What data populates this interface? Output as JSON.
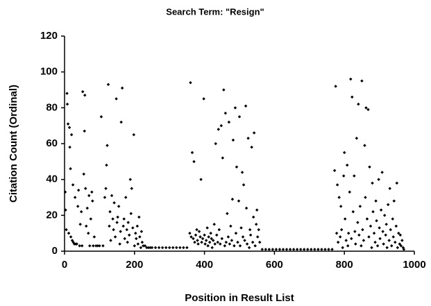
{
  "chart_data": {
    "type": "scatter",
    "title": "Search Term: \"Resign\"",
    "x_label": "Position in Result List",
    "y_label": "Citation Count (Ordinal)",
    "color": "#000000",
    "xlim": [
      0,
      1000
    ],
    "xticks": [
      0,
      200,
      400,
      600,
      800,
      1000
    ],
    "ylim": [
      0,
      120
    ],
    "yticks": [
      0,
      20,
      40,
      60,
      80,
      100,
      120
    ],
    "grid": false,
    "x": [
      2,
      3,
      5,
      7,
      8,
      10,
      12,
      14,
      15,
      17,
      18,
      20,
      22,
      24,
      25,
      28,
      30,
      32,
      35,
      38,
      40,
      43,
      45,
      48,
      50,
      52,
      55,
      57,
      58,
      60,
      62,
      65,
      68,
      70,
      72,
      75,
      78,
      80,
      82,
      85,
      90,
      95,
      100,
      105,
      110,
      115,
      118,
      120,
      122,
      125,
      128,
      130,
      132,
      135,
      138,
      140,
      142,
      145,
      148,
      150,
      152,
      155,
      158,
      160,
      162,
      165,
      168,
      170,
      172,
      175,
      178,
      180,
      182,
      185,
      188,
      190,
      192,
      195,
      198,
      200,
      203,
      205,
      208,
      210,
      213,
      215,
      218,
      220,
      222,
      225,
      230,
      235,
      240,
      245,
      250,
      260,
      270,
      280,
      290,
      300,
      310,
      320,
      330,
      340,
      350,
      358,
      360,
      362,
      365,
      368,
      370,
      372,
      375,
      378,
      380,
      382,
      385,
      388,
      390,
      392,
      395,
      398,
      400,
      402,
      405,
      408,
      410,
      412,
      415,
      418,
      420,
      422,
      425,
      428,
      430,
      432,
      435,
      438,
      440,
      442,
      445,
      448,
      450,
      452,
      455,
      458,
      460,
      462,
      465,
      468,
      470,
      472,
      475,
      478,
      480,
      482,
      485,
      488,
      490,
      492,
      495,
      498,
      500,
      502,
      505,
      508,
      510,
      512,
      515,
      518,
      520,
      522,
      525,
      528,
      530,
      532,
      535,
      538,
      540,
      542,
      545,
      548,
      550,
      552,
      555,
      558,
      565,
      575,
      585,
      595,
      605,
      615,
      625,
      635,
      645,
      655,
      665,
      675,
      685,
      695,
      705,
      715,
      725,
      735,
      745,
      755,
      765,
      772,
      775,
      778,
      780,
      782,
      785,
      788,
      790,
      792,
      795,
      798,
      800,
      802,
      805,
      808,
      810,
      812,
      815,
      818,
      820,
      822,
      825,
      828,
      830,
      832,
      835,
      838,
      840,
      842,
      845,
      848,
      850,
      852,
      855,
      858,
      860,
      862,
      865,
      868,
      870,
      872,
      875,
      878,
      880,
      882,
      885,
      888,
      890,
      892,
      895,
      898,
      900,
      902,
      905,
      908,
      910,
      912,
      915,
      918,
      920,
      922,
      925,
      928,
      930,
      932,
      935,
      938,
      940,
      942,
      945,
      948,
      950,
      952,
      955,
      958,
      960,
      962,
      965,
      968,
      970
    ],
    "values": [
      33,
      23,
      12,
      88,
      82,
      71,
      10,
      69,
      58,
      46,
      8,
      65,
      6,
      37,
      5,
      4,
      30,
      4,
      4,
      25,
      34,
      3,
      15,
      22,
      3,
      89,
      43,
      67,
      87,
      35,
      14,
      24,
      10,
      31,
      3,
      18,
      33,
      28,
      3,
      8,
      3,
      3,
      3,
      75,
      3,
      30,
      35,
      48,
      59,
      93,
      14,
      22,
      6,
      31,
      18,
      12,
      27,
      8,
      85,
      16,
      19,
      25,
      4,
      11,
      72,
      91,
      14,
      18,
      7,
      30,
      12,
      5,
      16,
      9,
      40,
      21,
      35,
      13,
      65,
      3,
      10,
      7,
      14,
      4,
      19,
      8,
      2,
      11,
      5,
      3,
      3,
      2,
      2,
      2,
      2,
      2,
      2,
      2,
      2,
      2,
      2,
      2,
      2,
      2,
      2,
      10,
      94,
      8,
      55,
      7,
      50,
      5,
      9,
      12,
      6,
      4,
      11,
      8,
      40,
      5,
      7,
      85,
      9,
      4,
      6,
      13,
      3,
      8,
      5,
      10,
      7,
      2,
      6,
      15,
      4,
      60,
      9,
      5,
      68,
      12,
      4,
      70,
      7,
      52,
      90,
      3,
      77,
      5,
      21,
      8,
      72,
      4,
      14,
      6,
      29,
      62,
      3,
      80,
      10,
      47,
      5,
      28,
      75,
      3,
      13,
      44,
      8,
      37,
      6,
      81,
      24,
      4,
      63,
      2,
      12,
      9,
      58,
      5,
      19,
      66,
      3,
      15,
      23,
      8,
      12,
      5,
      1,
      1,
      1,
      1,
      1,
      1,
      1,
      1,
      1,
      1,
      1,
      1,
      1,
      1,
      1,
      1,
      1,
      1,
      1,
      1,
      1,
      45,
      92,
      10,
      37,
      5,
      30,
      8,
      25,
      12,
      2,
      42,
      55,
      18,
      6,
      48,
      3,
      10,
      33,
      96,
      7,
      86,
      22,
      42,
      11,
      4,
      63,
      16,
      82,
      9,
      25,
      3,
      95,
      12,
      6,
      59,
      30,
      80,
      18,
      79,
      8,
      47,
      14,
      2,
      38,
      22,
      10,
      5,
      28,
      17,
      3,
      40,
      13,
      7,
      23,
      44,
      11,
      4,
      20,
      9,
      15,
      2,
      26,
      6,
      35,
      12,
      3,
      18,
      8,
      28,
      5,
      14,
      38,
      2,
      10,
      4,
      9,
      3,
      6,
      2,
      1
    ]
  }
}
